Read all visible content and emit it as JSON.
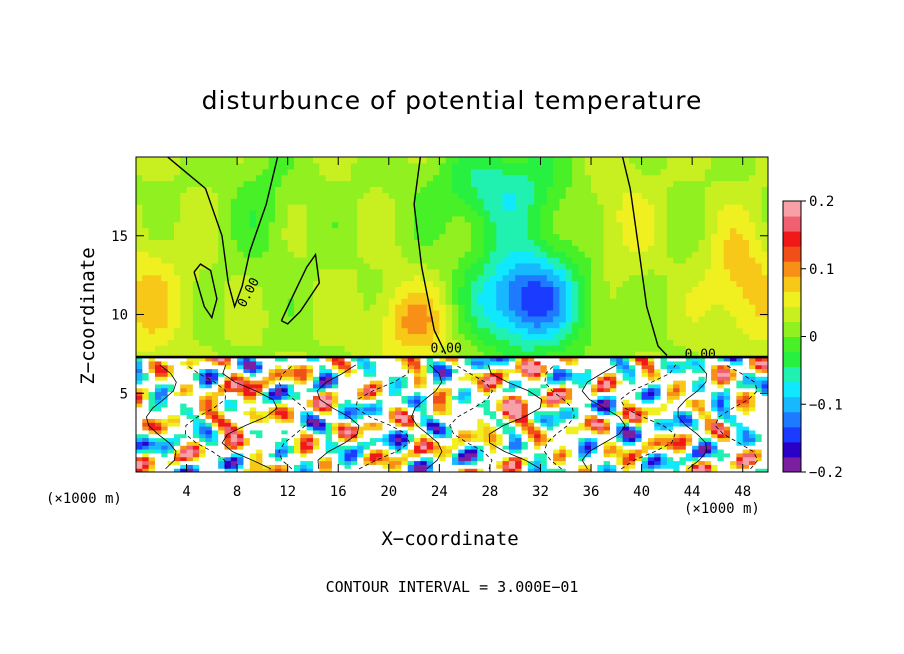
{
  "chart_data": {
    "type": "heatmap",
    "title": "disturbunce of potential temperature",
    "xlabel": "X−coordinate",
    "ylabel": "Z−coordinate",
    "x_unit_left": "(×1000 m)",
    "x_unit_right": "(×1000 m)",
    "x_ticks": [
      4,
      8,
      12,
      16,
      20,
      24,
      28,
      32,
      36,
      40,
      44,
      48
    ],
    "y_ticks": [
      5,
      10,
      15
    ],
    "xlim": [
      0,
      50
    ],
    "ylim": [
      0,
      20
    ],
    "colorbar_ticks": [
      "0.2",
      "0.1",
      "0",
      "−0.1",
      "−0.2"
    ],
    "colorbar_range": [
      -0.2,
      0.2
    ],
    "colorbar_colors": [
      "#7a1fa0",
      "#2a00c8",
      "#1b3cff",
      "#1e7bff",
      "#18b8ff",
      "#10e8ff",
      "#20f0b0",
      "#28f040",
      "#48f028",
      "#90f020",
      "#c8f020",
      "#f0f020",
      "#f8c818",
      "#f89018",
      "#f05018",
      "#f01818",
      "#f06070",
      "#f8a0a8"
    ],
    "contour_label": "0.00",
    "contour_interval": "CONTOUR INTERVAL = 3.000E−01",
    "inversion_height": 7.3
  }
}
